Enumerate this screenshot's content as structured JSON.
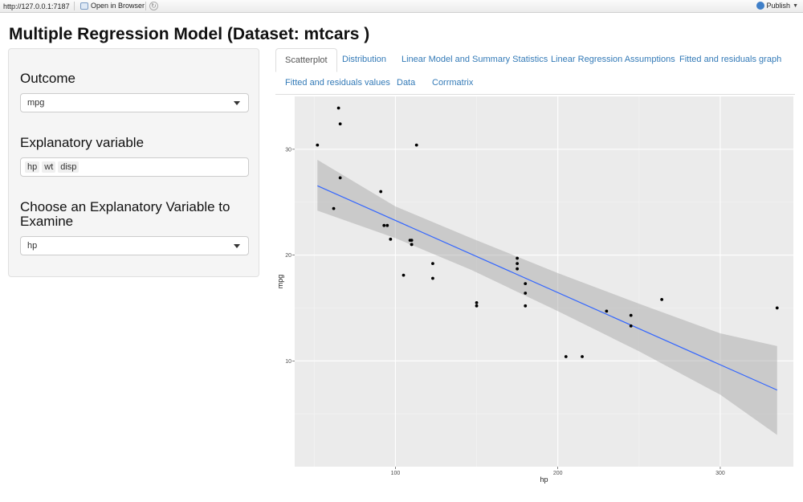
{
  "browser": {
    "url": "http://127.0.0.1:7187",
    "open_in_browser": "Open in Browser",
    "publish": "Publish"
  },
  "page": {
    "title": "Multiple Regression Model (Dataset: mtcars )"
  },
  "sidebar": {
    "outcome_label": "Outcome",
    "outcome_value": "mpg",
    "explanatory_label": "Explanatory variable",
    "explanatory_values": [
      "hp",
      "wt",
      "disp"
    ],
    "choose_label_line1": "Choose an Explanatory Variable to",
    "choose_label_line2": "Examine",
    "choose_value": "hp"
  },
  "tabs": [
    {
      "label": "Scatterplot",
      "active": true
    },
    {
      "label": "Distribution",
      "active": false
    },
    {
      "label": "Linear Model and Summary Statistics",
      "active": false
    },
    {
      "label": "Linear Regression Assumptions",
      "active": false
    },
    {
      "label": "Fitted and residuals graph",
      "active": false
    },
    {
      "label": "Fitted and residuals values",
      "active": false
    },
    {
      "label": "Data",
      "active": false
    },
    {
      "label": "Corrmatrix",
      "active": false
    }
  ],
  "chart_data": {
    "type": "scatter",
    "xlabel": "hp",
    "ylabel": "mpg",
    "xlim": [
      38,
      345
    ],
    "ylim": [
      0,
      35
    ],
    "x_ticks": [
      100,
      200,
      300
    ],
    "y_ticks": [
      10,
      20,
      30
    ],
    "grid": true,
    "points": [
      {
        "x": 110,
        "y": 21.0
      },
      {
        "x": 110,
        "y": 21.0
      },
      {
        "x": 93,
        "y": 22.8
      },
      {
        "x": 110,
        "y": 21.4
      },
      {
        "x": 175,
        "y": 18.7
      },
      {
        "x": 105,
        "y": 18.1
      },
      {
        "x": 245,
        "y": 14.3
      },
      {
        "x": 62,
        "y": 24.4
      },
      {
        "x": 95,
        "y": 22.8
      },
      {
        "x": 123,
        "y": 19.2
      },
      {
        "x": 123,
        "y": 17.8
      },
      {
        "x": 180,
        "y": 16.4
      },
      {
        "x": 180,
        "y": 17.3
      },
      {
        "x": 180,
        "y": 15.2
      },
      {
        "x": 205,
        "y": 10.4
      },
      {
        "x": 215,
        "y": 10.4
      },
      {
        "x": 230,
        "y": 14.7
      },
      {
        "x": 66,
        "y": 32.4
      },
      {
        "x": 52,
        "y": 30.4
      },
      {
        "x": 65,
        "y": 33.9
      },
      {
        "x": 97,
        "y": 21.5
      },
      {
        "x": 150,
        "y": 15.5
      },
      {
        "x": 150,
        "y": 15.2
      },
      {
        "x": 245,
        "y": 13.3
      },
      {
        "x": 175,
        "y": 19.2
      },
      {
        "x": 66,
        "y": 27.3
      },
      {
        "x": 91,
        "y": 26.0
      },
      {
        "x": 113,
        "y": 30.4
      },
      {
        "x": 264,
        "y": 15.8
      },
      {
        "x": 175,
        "y": 19.7
      },
      {
        "x": 335,
        "y": 15.0
      },
      {
        "x": 109,
        "y": 21.4
      }
    ],
    "fit_line": {
      "intercept": 30.099,
      "slope": -0.06823,
      "color": "#3366ff"
    },
    "confidence_band": [
      {
        "x": 52,
        "lower": 24.2,
        "upper": 29.0
      },
      {
        "x": 100,
        "lower": 21.6,
        "upper": 24.6
      },
      {
        "x": 146.7,
        "lower": 18.6,
        "upper": 21.6
      },
      {
        "x": 200,
        "lower": 14.7,
        "upper": 18.3
      },
      {
        "x": 250,
        "lower": 10.9,
        "upper": 15.4
      },
      {
        "x": 300,
        "lower": 6.8,
        "upper": 12.6
      },
      {
        "x": 335,
        "lower": 3.0,
        "upper": 11.4
      }
    ],
    "panel_color": "#ebebeb",
    "band_color": "#999999"
  }
}
